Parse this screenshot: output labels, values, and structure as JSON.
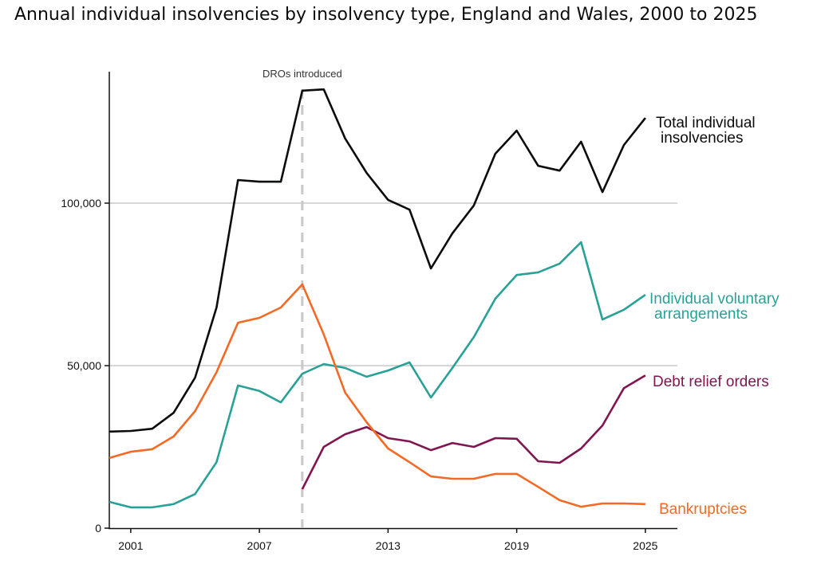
{
  "chart_data": {
    "type": "line",
    "title": "Annual individual insolvencies by insolvency type, England and Wales, 2000 to 2025",
    "xlabel": "",
    "ylabel": "",
    "x": [
      2000,
      2001,
      2002,
      2003,
      2004,
      2005,
      2006,
      2007,
      2008,
      2009,
      2010,
      2011,
      2012,
      2013,
      2014,
      2015,
      2016,
      2017,
      2018,
      2019,
      2020,
      2021,
      2022,
      2023,
      2024,
      2025
    ],
    "xlim": [
      2000,
      2026.5
    ],
    "ylim": [
      0,
      140000
    ],
    "x_ticks": [
      "2001",
      "2007",
      "2013",
      "2019",
      "2025"
    ],
    "x_tick_values": [
      2001,
      2007,
      2013,
      2019,
      2025
    ],
    "y_ticks": [
      "0",
      "50,000",
      "100,000"
    ],
    "y_tick_values": [
      0,
      50000,
      100000
    ],
    "grid": "horizontal",
    "annotation": {
      "text": "DROs introduced",
      "x": 2009
    },
    "series": [
      {
        "name": "Total individual insolvencies",
        "label_lines": [
          "Total individual",
          "insolvencies"
        ],
        "color": "#0b0c0c",
        "values": [
          29700,
          29900,
          30600,
          35500,
          46300,
          67900,
          107100,
          106600,
          106600,
          134600,
          135000,
          119900,
          109300,
          101000,
          98000,
          79900,
          90700,
          99300,
          115200,
          122300,
          111500,
          110000,
          118900,
          103400,
          117900,
          126200
        ]
      },
      {
        "name": "Individual voluntary arrangements",
        "label_lines": [
          "Individual voluntary",
          "arrangements"
        ],
        "color": "#28a197",
        "values": [
          8100,
          6400,
          6400,
          7400,
          10500,
          20300,
          43900,
          42200,
          38700,
          47500,
          50500,
          49300,
          46600,
          48500,
          51000,
          40200,
          49300,
          58800,
          70600,
          77900,
          78700,
          81400,
          88000,
          64200,
          67200,
          71800
        ]
      },
      {
        "name": "Debt relief orders",
        "label_lines": [
          "Debt relief orders"
        ],
        "color": "#801650",
        "values": [
          null,
          null,
          null,
          null,
          null,
          null,
          null,
          null,
          null,
          12000,
          25000,
          28900,
          31100,
          27700,
          26700,
          24000,
          26200,
          25000,
          27700,
          27500,
          20600,
          20100,
          24500,
          31600,
          43100,
          47000
        ]
      },
      {
        "name": "Bankruptcies",
        "label_lines": [
          "Bankruptcies"
        ],
        "color": "#f46a25",
        "values": [
          21600,
          23500,
          24300,
          28200,
          36000,
          48000,
          63200,
          64700,
          67900,
          75000,
          59600,
          41700,
          32600,
          24500,
          20300,
          15900,
          15200,
          15200,
          16700,
          16700,
          12700,
          8600,
          6600,
          7600,
          7600,
          7400
        ]
      }
    ]
  }
}
